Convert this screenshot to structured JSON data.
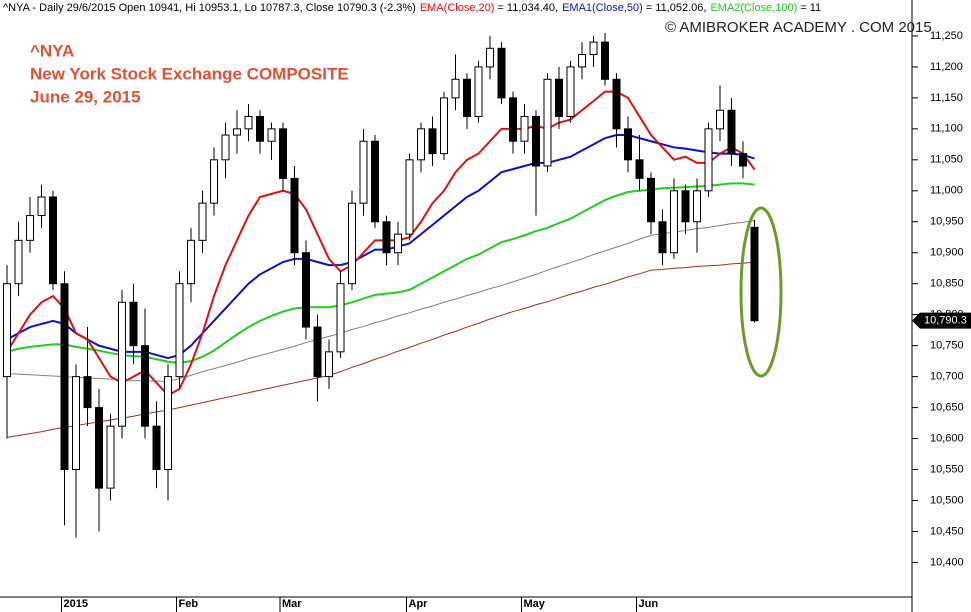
{
  "chart_data": {
    "type": "candlestick",
    "header": [
      {
        "text": "^NYA - Daily 29/6/2015 Open 10941, Hi 10953.1, Lo 10787.3, Close 10790.3 (-2.3%)",
        "color": "#000000"
      }
    ],
    "annotations": [
      "^NYA",
      "New York Stock Exchange COMPOSITE",
      "June 29, 2015"
    ],
    "watermark": "© AMIBROKER ACADEMY . COM 2015",
    "categories": [
      null,
      null,
      null,
      null,
      null,
      "2015",
      null,
      null,
      null,
      null,
      null,
      null,
      null,
      null,
      null,
      "Feb",
      null,
      null,
      null,
      null,
      null,
      null,
      null,
      null,
      "Mar",
      null,
      null,
      null,
      null,
      null,
      null,
      null,
      null,
      null,
      null,
      "Apr",
      null,
      null,
      null,
      null,
      null,
      null,
      null,
      null,
      null,
      "May",
      null,
      null,
      null,
      null,
      null,
      null,
      null,
      null,
      null,
      "Jun",
      null,
      null,
      null,
      null,
      null,
      null,
      null,
      null,
      null,
      null
    ],
    "open": [
      10700,
      10850,
      10920,
      10960,
      10990,
      10850,
      10550,
      10700,
      10650,
      10520,
      10620,
      10820,
      10750,
      10620,
      10550,
      10700,
      10850,
      10920,
      10980,
      11050,
      11090,
      11100,
      11120,
      11080,
      11100,
      11020,
      10900,
      10780,
      10700,
      10740,
      10850,
      10980,
      11080,
      10950,
      10900,
      10930,
      11050,
      11100,
      11060,
      11150,
      11180,
      11120,
      11200,
      11230,
      11150,
      11080,
      11120,
      11040,
      11180,
      11120,
      11200,
      11220,
      11240,
      11180,
      11100,
      11050,
      11020,
      10950,
      10900,
      11000,
      10950,
      11000,
      11100,
      11130,
      11060,
      10941
    ],
    "high": [
      10880,
      10950,
      10990,
      11010,
      11000,
      10870,
      10720,
      10780,
      10680,
      10640,
      10840,
      10850,
      10810,
      10660,
      10720,
      10870,
      10940,
      11000,
      11070,
      11110,
      11130,
      11140,
      11130,
      11110,
      11110,
      11040,
      10920,
      10800,
      10760,
      10870,
      11000,
      11100,
      11090,
      10960,
      10950,
      11060,
      11110,
      11120,
      11160,
      11220,
      11190,
      11210,
      11250,
      11240,
      11160,
      11140,
      11130,
      11190,
      11200,
      11210,
      11240,
      11250,
      11255,
      11190,
      11120,
      11090,
      11030,
      10970,
      11020,
      11010,
      11020,
      11110,
      11170,
      11150,
      11080,
      10953.1
    ],
    "low": [
      10600,
      10830,
      10900,
      10940,
      10840,
      10460,
      10440,
      10620,
      10450,
      10500,
      10600,
      10720,
      10600,
      10520,
      10500,
      10680,
      10820,
      10900,
      10960,
      11020,
      11060,
      11080,
      11060,
      11050,
      11000,
      10880,
      10760,
      10660,
      10680,
      10730,
      10840,
      10960,
      10940,
      10880,
      10880,
      10920,
      11030,
      11040,
      11050,
      11130,
      11100,
      11110,
      11180,
      11140,
      11060,
      11060,
      10960,
      11030,
      11100,
      11110,
      11180,
      11200,
      11170,
      11070,
      11030,
      11000,
      10930,
      10880,
      10890,
      10930,
      10900,
      10990,
      11080,
      11040,
      11020,
      10787.3
    ],
    "close": [
      10850,
      10920,
      10960,
      10990,
      10850,
      10550,
      10700,
      10650,
      10520,
      10620,
      10820,
      10750,
      10620,
      10550,
      10700,
      10850,
      10920,
      10980,
      11050,
      11090,
      11100,
      11120,
      11080,
      11100,
      11020,
      10900,
      10780,
      10700,
      10740,
      10850,
      10980,
      11080,
      10950,
      10900,
      10930,
      11050,
      11100,
      11060,
      11150,
      11180,
      11120,
      11200,
      11230,
      11150,
      11080,
      11120,
      11040,
      11180,
      11120,
      11200,
      11220,
      11240,
      11180,
      11100,
      11050,
      11020,
      10950,
      10900,
      11000,
      10950,
      11000,
      11100,
      11130,
      11060,
      11040,
      10790.3
    ],
    "up_color": "#ffffff",
    "down_color": "#000000",
    "series": [
      {
        "values": [
          10602,
          10605,
          10608,
          10611,
          10615,
          10618,
          10621,
          10624,
          10627,
          10630,
          10633,
          10636,
          10640,
          10643,
          10646,
          10650,
          10654,
          10658,
          10662,
          10666,
          10670,
          10674,
          10678,
          10682,
          10686,
          10690,
          10694,
          10698,
          10702,
          10708,
          10715,
          10721,
          10728,
          10734,
          10741,
          10747,
          10754,
          10760,
          10767,
          10773,
          10780,
          10786,
          10793,
          10799,
          10805,
          10810,
          10816,
          10821,
          10827,
          10833,
          10838,
          10844,
          10849,
          10855,
          10861,
          10866,
          10872,
          10873,
          10875,
          10876,
          10878,
          10879,
          10880,
          10882,
          10883,
          10885
        ],
        "color": "#a0301c"
      },
      {
        "values": [
          10705,
          10704,
          10703,
          10702,
          10701,
          10700,
          10699,
          10698,
          10697,
          10696,
          10695,
          10694,
          10693,
          10693,
          10692,
          10697,
          10702,
          10708,
          10713,
          10718,
          10723,
          10729,
          10734,
          10739,
          10744,
          10749,
          10755,
          10760,
          10765,
          10770,
          10776,
          10781,
          10787,
          10792,
          10798,
          10803,
          10809,
          10814,
          10820,
          10825,
          10831,
          10836,
          10842,
          10847,
          10853,
          10859,
          10865,
          10872,
          10878,
          10884,
          10890,
          10897,
          10903,
          10909,
          10915,
          10922,
          10928,
          10931,
          10933,
          10936,
          10939,
          10941,
          10944,
          10947,
          10949,
          10952
        ],
        "color": "#808080"
      },
      {
        "name": "EMA2(Close,100)",
        "label": "= 11",
        "color": "#22cc22",
        "values": [
          10740,
          10745,
          10748,
          10750,
          10752,
          10752,
          10748,
          10745,
          10742,
          10738,
          10735,
          10733,
          10732,
          10728,
          10724,
          10722,
          10725,
          10732,
          10742,
          10755,
          10768,
          10780,
          10790,
          10798,
          10805,
          10810,
          10812,
          10812,
          10812,
          10815,
          10820,
          10826,
          10832,
          10834,
          10836,
          10840,
          10850,
          10860,
          10870,
          10880,
          10890,
          10897,
          10907,
          10917,
          10922,
          10928,
          10935,
          10940,
          10948,
          10955,
          10965,
          10975,
          10985,
          10992,
          10998,
          11000,
          11002,
          11004,
          11005,
          11006,
          11007,
          11008,
          11010,
          11012,
          11012,
          11010
        ]
      },
      {
        "name": "EMA1(Close,50)",
        "label": "= 11,052.06,",
        "color": "#1010c0",
        "values": [
          10760,
          10770,
          10780,
          10785,
          10790,
          10785,
          10770,
          10760,
          10750,
          10745,
          10740,
          10740,
          10740,
          10735,
          10730,
          10735,
          10750,
          10770,
          10790,
          10810,
          10830,
          10850,
          10865,
          10875,
          10885,
          10890,
          10890,
          10885,
          10880,
          10880,
          10885,
          10895,
          10905,
          10905,
          10910,
          10915,
          10930,
          10945,
          10960,
          10975,
          10990,
          11000,
          11015,
          11030,
          11035,
          11040,
          11045,
          11045,
          11050,
          11055,
          11065,
          11075,
          11085,
          11090,
          11090,
          11085,
          11080,
          11075,
          11070,
          11068,
          11065,
          11062,
          11060,
          11060,
          11058,
          11052.06
        ]
      },
      {
        "name": "EMA(Close,20)",
        "label": "= 11,034.40,",
        "color": "#dd1111",
        "values": [
          10740,
          10770,
          10800,
          10820,
          10830,
          10810,
          10770,
          10760,
          10730,
          10700,
          10690,
          10700,
          10710,
          10690,
          10670,
          10680,
          10720,
          10770,
          10830,
          10880,
          10920,
          10960,
          10990,
          10995,
          11000,
          10995,
          10970,
          10930,
          10890,
          10870,
          10880,
          10900,
          10920,
          10920,
          10920,
          10925,
          10950,
          10980,
          11000,
          11030,
          11050,
          11060,
          11080,
          11100,
          11100,
          11100,
          11105,
          11100,
          11110,
          11115,
          11130,
          11145,
          11160,
          11160,
          11150,
          11120,
          11090,
          11070,
          11050,
          11055,
          11045,
          11045,
          11060,
          11070,
          11060,
          11034.4
        ]
      }
    ],
    "last_price": {
      "value": 10790.3,
      "label": "10,790.3"
    },
    "ylim": [
      10320,
      11308
    ],
    "yticks": [
      {
        "value": 10400,
        "label": "10,400"
      },
      {
        "value": 10450,
        "label": "10,450"
      },
      {
        "value": 10500,
        "label": "10,500"
      },
      {
        "value": 10550,
        "label": "10,550"
      },
      {
        "value": 10600,
        "label": "10,600"
      },
      {
        "value": 10650,
        "label": "10,650"
      },
      {
        "value": 10700,
        "label": "10,700"
      },
      {
        "value": 10750,
        "label": "10,750"
      },
      {
        "value": 10800,
        "label": "10,800"
      },
      {
        "value": 10850,
        "label": "10,850"
      },
      {
        "value": 10900,
        "label": "10,900"
      },
      {
        "value": 10950,
        "label": "10,950"
      },
      {
        "value": 11000,
        "label": "11,000"
      },
      {
        "value": 11050,
        "label": "11,050"
      },
      {
        "value": 11100,
        "label": "11,100"
      },
      {
        "value": 11150,
        "label": "11,150"
      },
      {
        "value": 11200,
        "label": "11,200"
      },
      {
        "value": 11250,
        "label": "11,250"
      }
    ]
  }
}
